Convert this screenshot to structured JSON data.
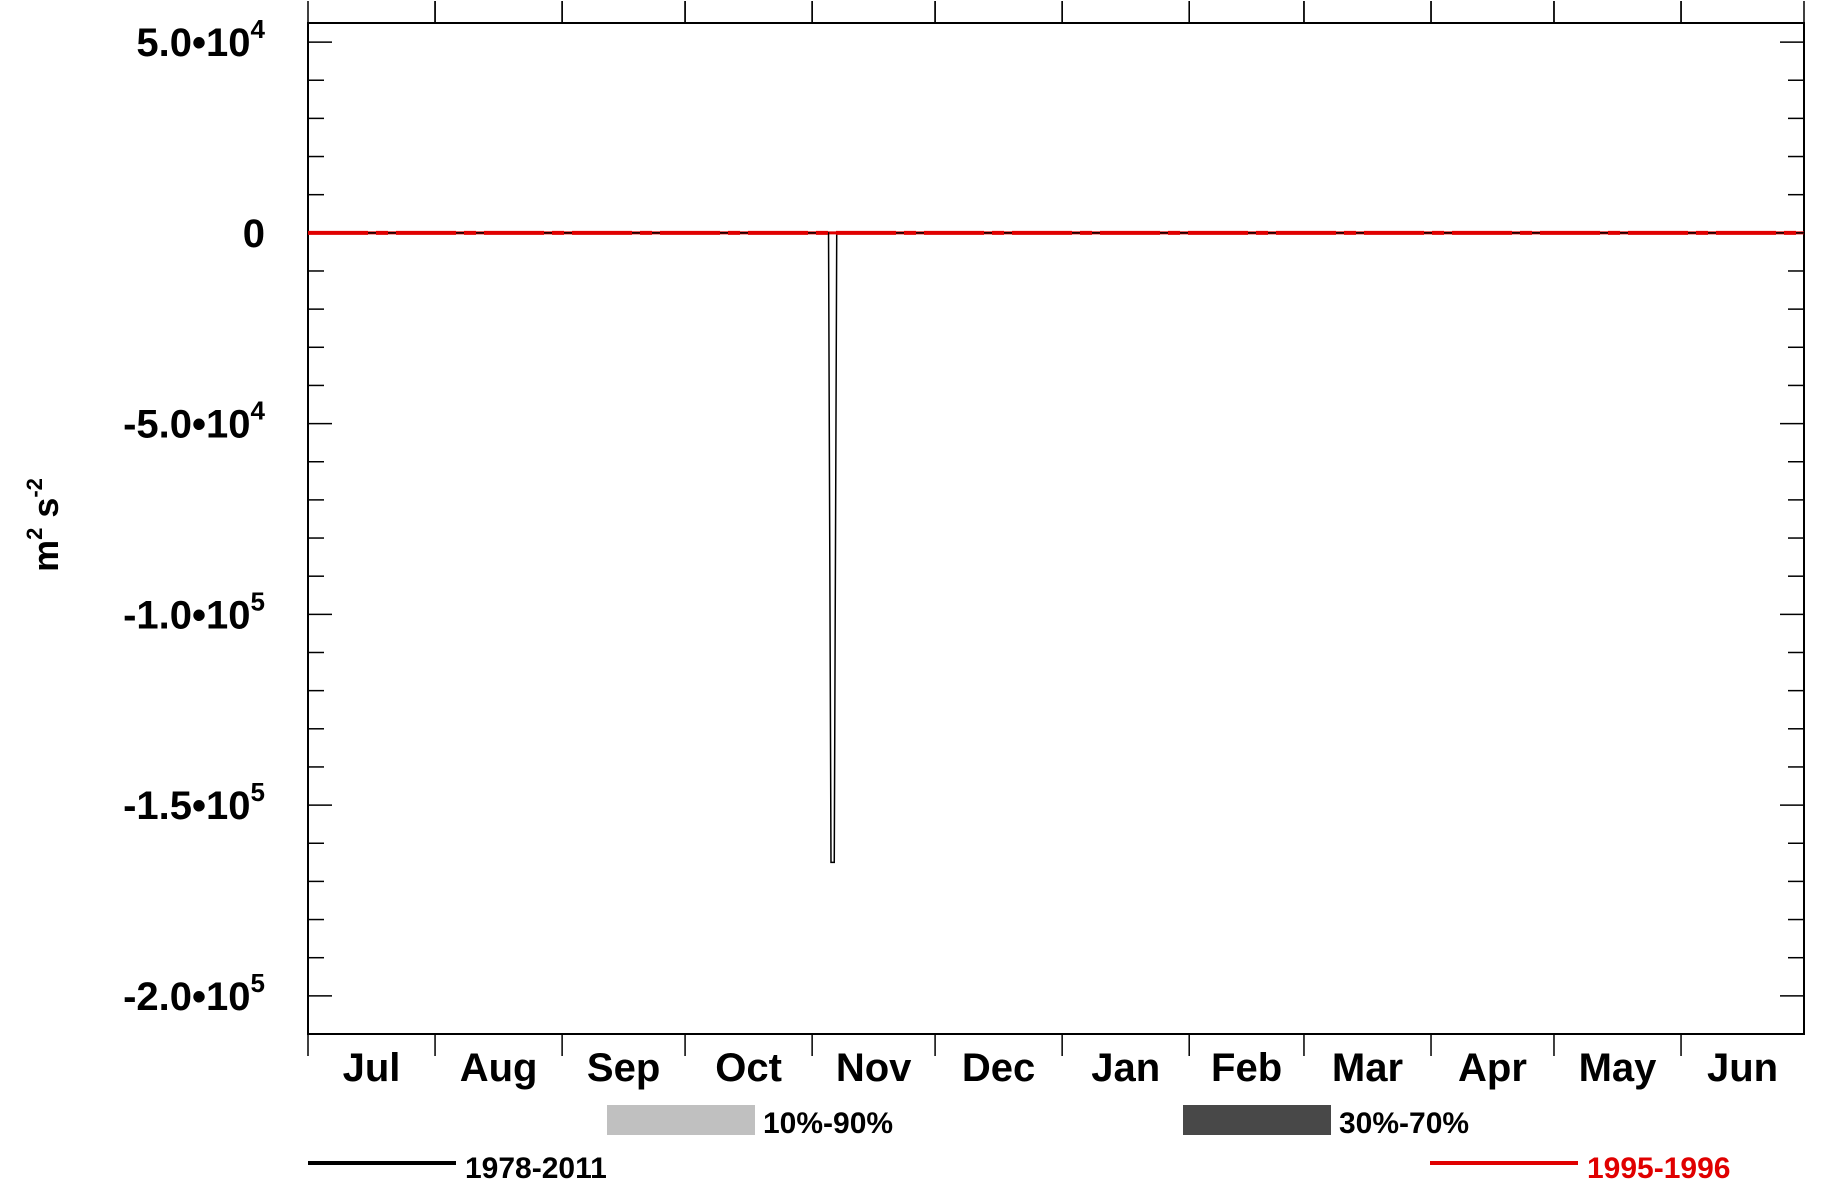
{
  "chart_data": {
    "type": "line",
    "ylabel": "m² s⁻²",
    "ylabel_base": "m",
    "ylabel_exp1": "2",
    "ylabel_mid": " s",
    "ylabel_exp2": "-2",
    "ylim": [
      -210000,
      55000
    ],
    "y_ticks": [
      {
        "value": 50000,
        "mant": "5.0•10",
        "exp": "4"
      },
      {
        "value": 0,
        "mant": "0",
        "exp": ""
      },
      {
        "value": -50000,
        "mant": "-5.0•10",
        "exp": "4"
      },
      {
        "value": -100000,
        "mant": "-1.0•10",
        "exp": "5"
      },
      {
        "value": -150000,
        "mant": "-1.5•10",
        "exp": "5"
      },
      {
        "value": -200000,
        "mant": "-2.0•10",
        "exp": "5"
      }
    ],
    "y_minor_step": 10000,
    "x_range": [
      0,
      365
    ],
    "months": [
      {
        "label": "Jul",
        "start": 0,
        "end": 31
      },
      {
        "label": "Aug",
        "start": 31,
        "end": 62
      },
      {
        "label": "Sep",
        "start": 62,
        "end": 92
      },
      {
        "label": "Oct",
        "start": 92,
        "end": 123
      },
      {
        "label": "Nov",
        "start": 123,
        "end": 153
      },
      {
        "label": "Dec",
        "start": 153,
        "end": 184
      },
      {
        "label": "Jan",
        "start": 184,
        "end": 215
      },
      {
        "label": "Feb",
        "start": 215,
        "end": 243
      },
      {
        "label": "Mar",
        "start": 243,
        "end": 274
      },
      {
        "label": "Apr",
        "start": 274,
        "end": 304
      },
      {
        "label": "May",
        "start": 304,
        "end": 335
      },
      {
        "label": "Jun",
        "start": 335,
        "end": 365
      }
    ],
    "series": [
      {
        "name": "1978-2011",
        "color": "#000000",
        "width": 1.5,
        "x": [
          0,
          127,
          127.6,
          128.4,
          129,
          365
        ],
        "y": [
          0,
          0,
          -165000,
          -165000,
          0,
          0
        ]
      },
      {
        "name": "1995-1996",
        "color": "#e00000",
        "width": 4,
        "dashed": true,
        "x": [
          0,
          365
        ],
        "y": [
          0,
          0
        ]
      }
    ],
    "bands": [
      {
        "name": "10%-90%",
        "color": "#c0c0c0"
      },
      {
        "name": "30%-70%",
        "color": "#484848"
      }
    ],
    "colors": {
      "axis": "#000000",
      "text": "#000000",
      "red": "#e00000"
    }
  }
}
